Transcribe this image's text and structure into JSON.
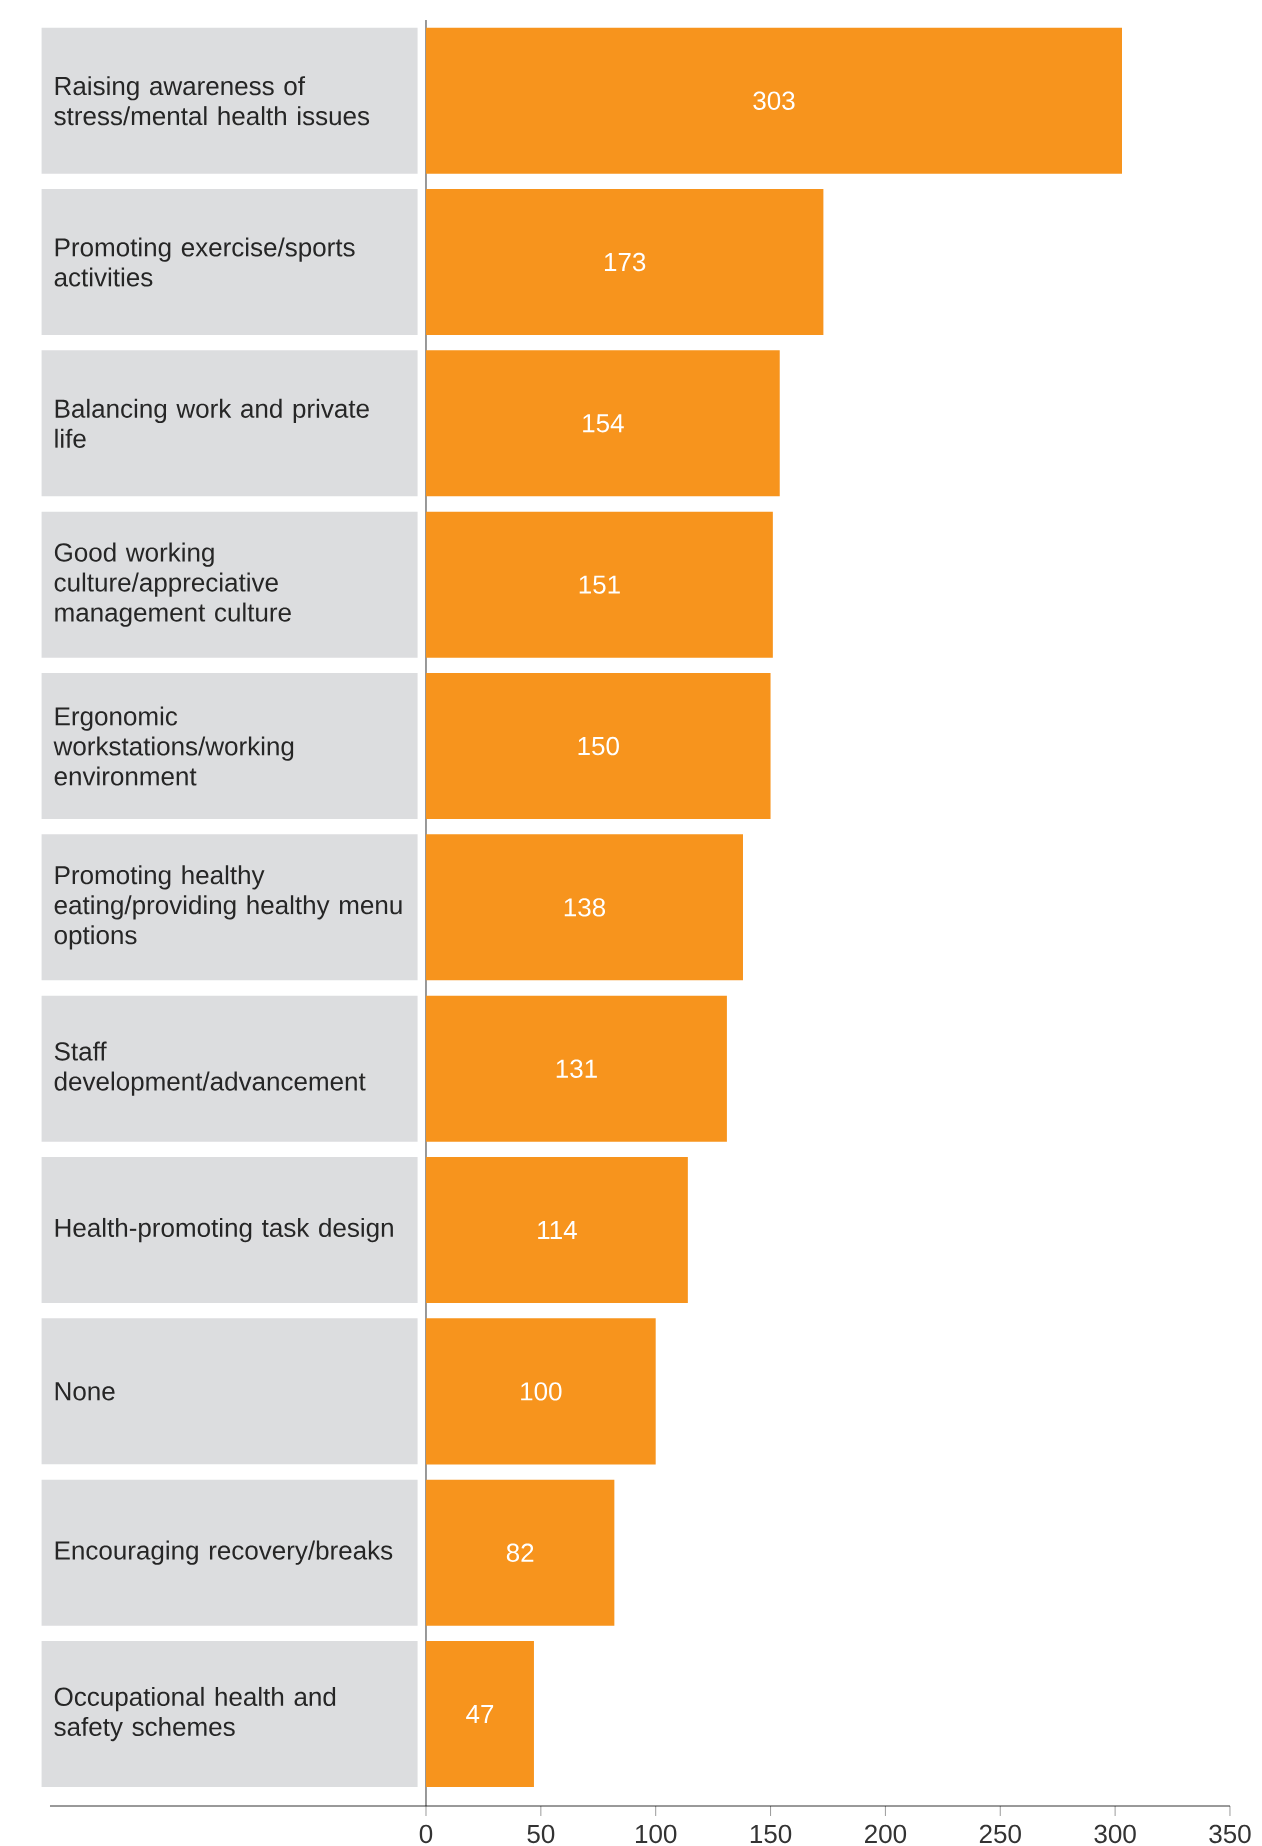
{
  "chart_data": {
    "type": "bar",
    "orientation": "horizontal",
    "categories": [
      "Raising awareness of stress/mental health issues",
      "Promoting exercise/sports activities",
      "Balancing work and private life",
      "Good working culture/appreciative management culture",
      "Ergonomic workstations/working environment",
      "Promoting healthy eating/providing healthy menu options",
      "Staff development/advancement",
      "Health-promoting task design",
      "None",
      "Encouraging recovery/breaks",
      "Occupational health and safety schemes"
    ],
    "values": [
      303,
      173,
      154,
      151,
      150,
      138,
      131,
      114,
      100,
      82,
      47
    ],
    "color": "#f7941d",
    "data_labels": true,
    "xlim": [
      0,
      350
    ],
    "xticks": [
      0,
      50,
      100,
      150,
      200,
      250,
      300,
      350
    ],
    "grid": false
  }
}
